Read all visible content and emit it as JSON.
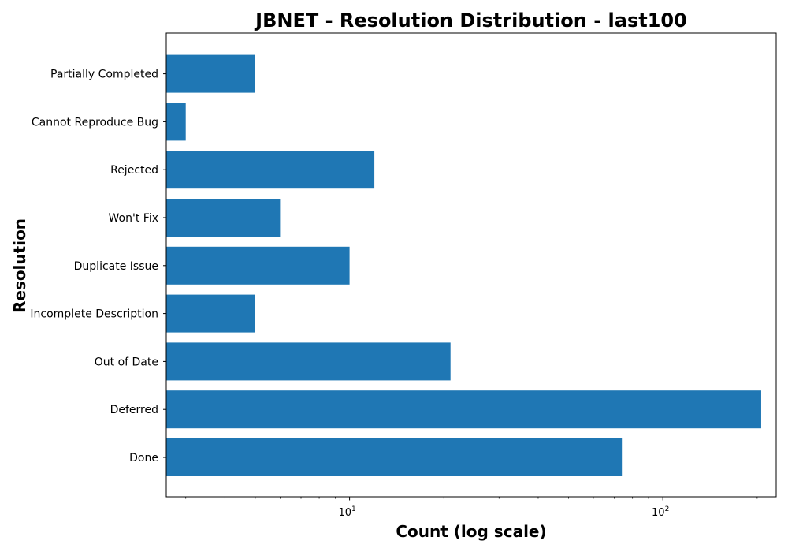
{
  "chart_data": {
    "type": "bar",
    "orientation": "horizontal",
    "title": "JBNET - Resolution Distribution - last100",
    "xlabel": "Count (log scale)",
    "ylabel": "Resolution",
    "x_scale": "log",
    "xlim": [
      2.6,
      230
    ],
    "x_major_ticks": [
      {
        "value": 10,
        "label_base": "10",
        "label_exp": "1"
      },
      {
        "value": 100,
        "label_base": "10",
        "label_exp": "2"
      }
    ],
    "categories": [
      "Done",
      "Deferred",
      "Out of Date",
      "Incomplete Description",
      "Duplicate Issue",
      "Won't Fix",
      "Rejected",
      "Cannot Reproduce Bug",
      "Partially Completed"
    ],
    "values": [
      74,
      206,
      21,
      5,
      10,
      6,
      12,
      3,
      5
    ],
    "bar_color": "#1f77b4",
    "grid": false,
    "legend": "none"
  }
}
